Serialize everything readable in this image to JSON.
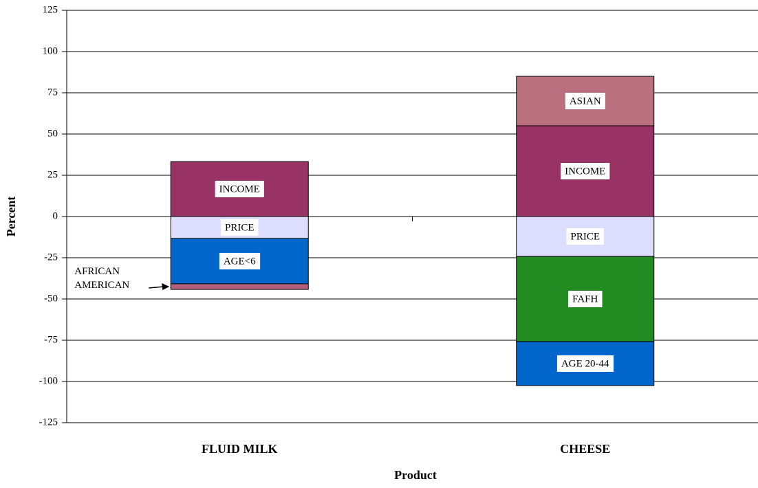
{
  "chart_data": {
    "type": "stacked-bar",
    "x_label": "Product",
    "y_label": "Percent",
    "categories": [
      "FLUID MILK",
      "CHEESE"
    ],
    "series": [
      {
        "name": "INCOME",
        "color": "#993366",
        "values": [
          33.3,
          55
        ]
      },
      {
        "name": "ASIAN",
        "color": "#bb7080",
        "values": [
          null,
          30
        ]
      },
      {
        "name": "PRICE",
        "color": "#ddddff",
        "values": [
          -13.3,
          -24.2
        ]
      },
      {
        "name": "AGE<6",
        "color": "#0066cc",
        "values": [
          -27.5,
          null
        ]
      },
      {
        "name": "FAFH",
        "color": "#228b22",
        "values": [
          null,
          -51.6
        ]
      },
      {
        "name": "AFRICAN AMERICAN",
        "color": "#b3607a",
        "values": [
          -3.4,
          null
        ]
      },
      {
        "name": "AGE 20-44",
        "color": "#0066cc",
        "values": [
          null,
          -26.7
        ]
      }
    ],
    "ylim": [
      -125,
      125
    ],
    "yticks": [
      -125,
      -100,
      -75,
      -50,
      -25,
      0,
      25,
      50,
      75,
      100,
      125
    ],
    "grid": true
  }
}
